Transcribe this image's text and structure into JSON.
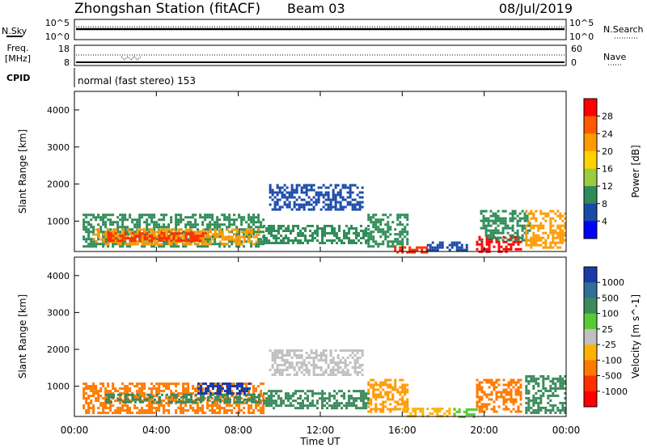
{
  "header": {
    "station": "Zhongshan Station (fitACF)",
    "beam": "Beam 03",
    "date": "08/Jul/2019"
  },
  "noise_panel": {
    "left_label": "N.Sky",
    "right_label": "N.Search",
    "left_ticks": [
      "10^5",
      "10^0"
    ],
    "right_ticks": [
      "10^5",
      "10^0"
    ]
  },
  "freq_panel": {
    "label_line1": "Freq.",
    "label_line2": "[MHz]",
    "left_ticks": [
      "18",
      "8"
    ],
    "right_label": "Nave",
    "right_ticks": [
      "60",
      "0"
    ]
  },
  "cpid_panel": {
    "label": "CPID",
    "mode": "normal (fast stereo) 153"
  },
  "y_axis": {
    "label": "Slant Range [km]",
    "ticks": [
      "4000",
      "3000",
      "2000",
      "1000"
    ]
  },
  "x_axis": {
    "label": "Time UT",
    "ticks": [
      "00:00",
      "04:00",
      "08:00",
      "12:00",
      "16:00",
      "20:00",
      "00:00"
    ]
  },
  "power_colorbar": {
    "label": "Power [dB]",
    "ticks": [
      "28",
      "24",
      "20",
      "16",
      "12",
      "8",
      "4"
    ],
    "colors": [
      "#ff0000",
      "#ff5a00",
      "#ff9a00",
      "#ffd200",
      "#9ccc3c",
      "#2e8b57",
      "#1a4aa8",
      "#0000ff"
    ]
  },
  "velocity_colorbar": {
    "label": "Velocity [m s^-1]",
    "ticks": [
      "1000",
      "500",
      "100",
      "25",
      "-25",
      "-100",
      "-500",
      "-1000"
    ],
    "colors": [
      "#1a3aa8",
      "#2f6f9a",
      "#3a8a5a",
      "#55cc33",
      "#c0c0c0",
      "#ffb000",
      "#ff7a00",
      "#ff3000",
      "#ff0000"
    ]
  },
  "chart_data": {
    "type": "heatmap",
    "time_range_hours": [
      0,
      24
    ],
    "range_km": [
      180,
      4500
    ],
    "power_regions": [
      {
        "t0": 0.4,
        "t1": 9.2,
        "r0": 300,
        "r1": 1200,
        "color": "#2e8b57"
      },
      {
        "t0": 0.9,
        "t1": 9.0,
        "r0": 400,
        "r1": 800,
        "color": "#ff9a00"
      },
      {
        "t0": 1.6,
        "t1": 6.5,
        "r0": 450,
        "r1": 700,
        "color": "#ff3000"
      },
      {
        "t0": 9.2,
        "t1": 14.4,
        "r0": 380,
        "r1": 900,
        "color": "#2e8b57"
      },
      {
        "t0": 9.5,
        "t1": 14.0,
        "r0": 1300,
        "r1": 2000,
        "color": "#1a4aa8"
      },
      {
        "t0": 14.3,
        "t1": 16.3,
        "r0": 300,
        "r1": 1200,
        "color": "#2e8b57"
      },
      {
        "t0": 15.6,
        "t1": 17.2,
        "r0": 180,
        "r1": 320,
        "color": "#ff3000"
      },
      {
        "t0": 17.2,
        "t1": 19.2,
        "r0": 200,
        "r1": 450,
        "color": "#1a4aa8"
      },
      {
        "t0": 19.6,
        "t1": 21.8,
        "r0": 200,
        "r1": 600,
        "color": "#ff0000"
      },
      {
        "t0": 19.8,
        "t1": 22.2,
        "r0": 500,
        "r1": 1300,
        "color": "#2e8b57"
      },
      {
        "t0": 22.0,
        "t1": 24.0,
        "r0": 300,
        "r1": 1300,
        "color": "#ff9a00"
      }
    ],
    "velocity_regions": [
      {
        "t0": 0.4,
        "t1": 9.2,
        "r0": 300,
        "r1": 1100,
        "color": "#ff7a00"
      },
      {
        "t0": 1.5,
        "t1": 9.0,
        "r0": 550,
        "r1": 800,
        "color": "#3a8a5a"
      },
      {
        "t0": 6.0,
        "t1": 8.5,
        "r0": 800,
        "r1": 1100,
        "color": "#1a3aa8"
      },
      {
        "t0": 9.2,
        "t1": 14.4,
        "r0": 380,
        "r1": 900,
        "color": "#3a8a5a"
      },
      {
        "t0": 9.5,
        "t1": 14.0,
        "r0": 1300,
        "r1": 2000,
        "color": "#c0c0c0"
      },
      {
        "t0": 14.3,
        "t1": 16.3,
        "r0": 300,
        "r1": 1200,
        "color": "#ff9a00"
      },
      {
        "t0": 16.0,
        "t1": 18.5,
        "r0": 180,
        "r1": 420,
        "color": "#ffb000"
      },
      {
        "t0": 18.5,
        "t1": 19.6,
        "r0": 200,
        "r1": 400,
        "color": "#55cc33"
      },
      {
        "t0": 19.6,
        "t1": 21.8,
        "r0": 300,
        "r1": 1200,
        "color": "#ff7a00"
      },
      {
        "t0": 22.0,
        "t1": 24.0,
        "r0": 300,
        "r1": 1300,
        "color": "#3a8a5a"
      }
    ]
  }
}
